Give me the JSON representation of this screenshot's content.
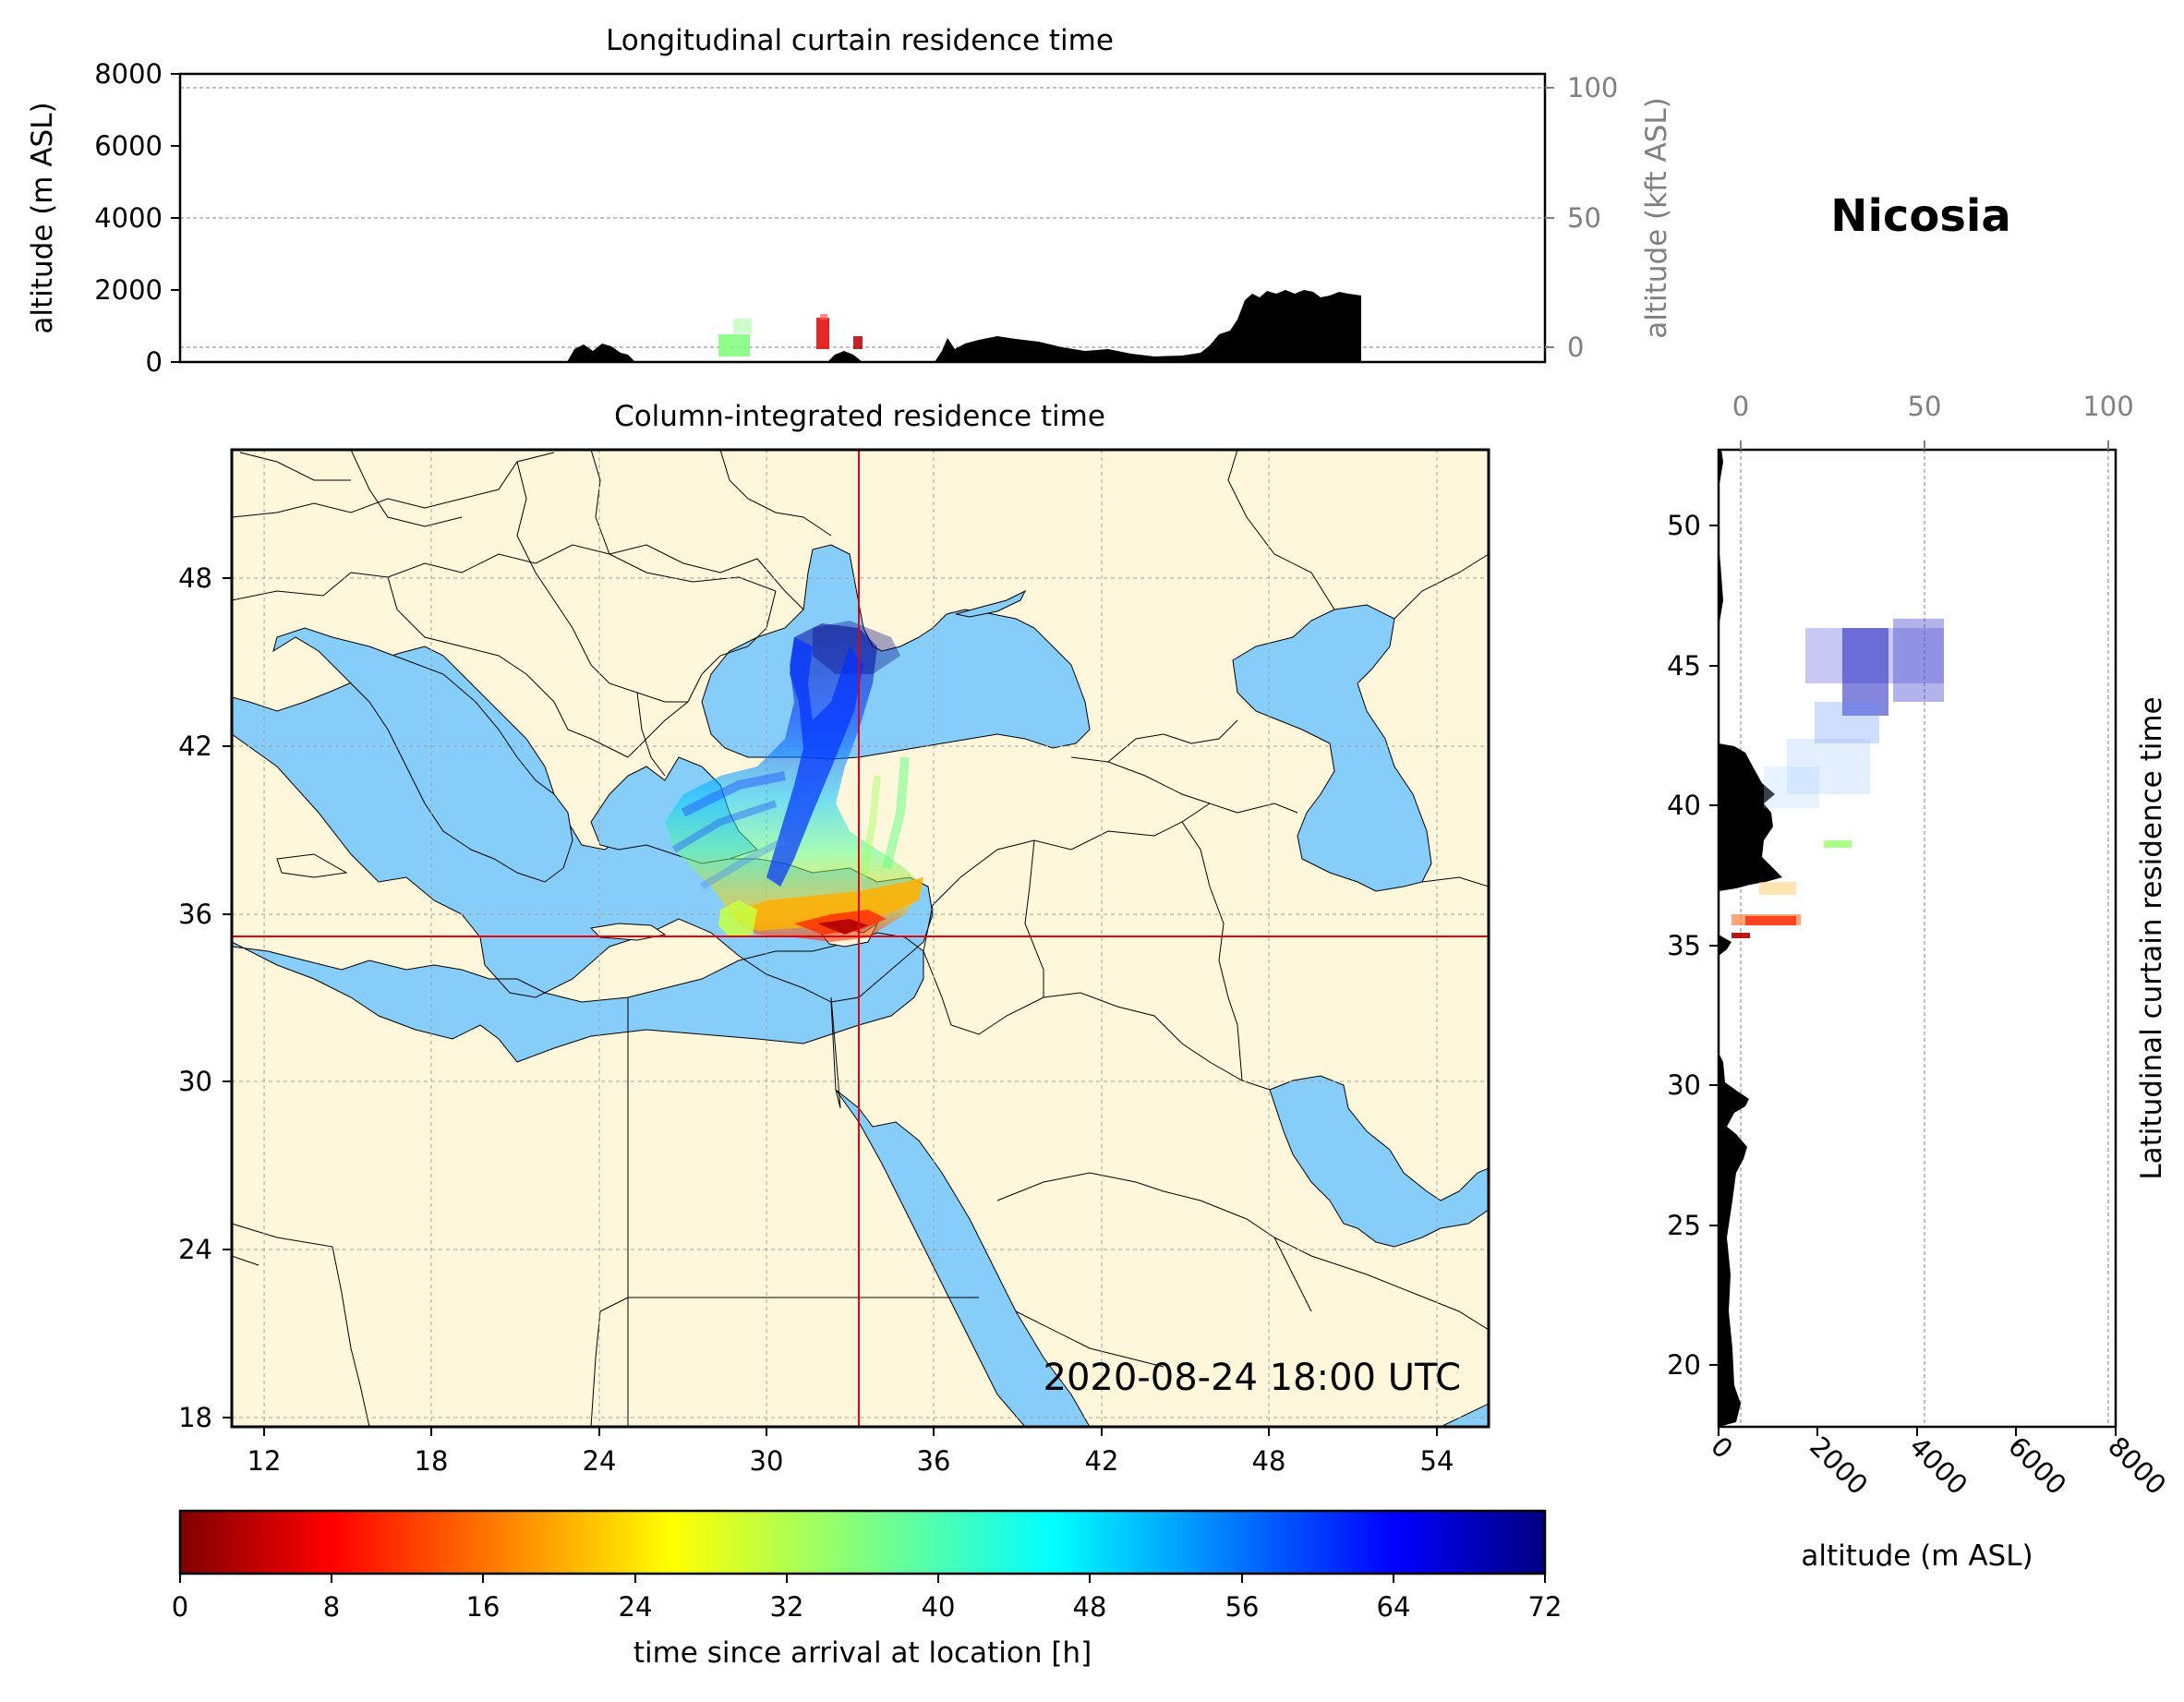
{
  "station_name": "Nicosia",
  "top_panel": {
    "title": "Longitudinal curtain residence time",
    "ylabel_left": "altitude (m ASL)",
    "ylabel_right": "altitude (kft ASL)",
    "left_ticks": [
      "0",
      "2000",
      "4000",
      "6000",
      "8000"
    ],
    "right_ticks": [
      "0",
      "50",
      "100"
    ]
  },
  "map_panel": {
    "title": "Column-integrated residence time",
    "timestamp": "2020-08-24 18:00 UTC",
    "lon_ticks": [
      "12",
      "18",
      "24",
      "30",
      "36",
      "42",
      "48",
      "54"
    ],
    "lat_ticks": [
      "18",
      "24",
      "30",
      "36",
      "42",
      "48"
    ],
    "lon_range": [
      10.9,
      55.9
    ],
    "lat_range": [
      17.9,
      52.8
    ],
    "receptor": {
      "lon": 33.4,
      "lat": 35.2
    },
    "colors": {
      "land": "#fff7dc",
      "sea": "#87cdf9",
      "border": "#000000",
      "crosshair": "#e8000b"
    }
  },
  "side_panel": {
    "ylabel": "Latitudinal curtain residence time",
    "xlabel": "altitude (m ASL)",
    "lat_ticks": [
      "20",
      "25",
      "30",
      "35",
      "40",
      "45",
      "50"
    ],
    "bottom_ticks": [
      "0",
      "2000",
      "4000",
      "6000",
      "8000"
    ],
    "top_ticks": [
      "0",
      "50",
      "100"
    ]
  },
  "colorbar": {
    "label": "time since arrival at location [h]",
    "ticks": [
      "0",
      "8",
      "16",
      "24",
      "32",
      "40",
      "48",
      "56",
      "64",
      "72"
    ],
    "range": [
      0,
      72
    ],
    "colormap": "jet_r"
  }
}
